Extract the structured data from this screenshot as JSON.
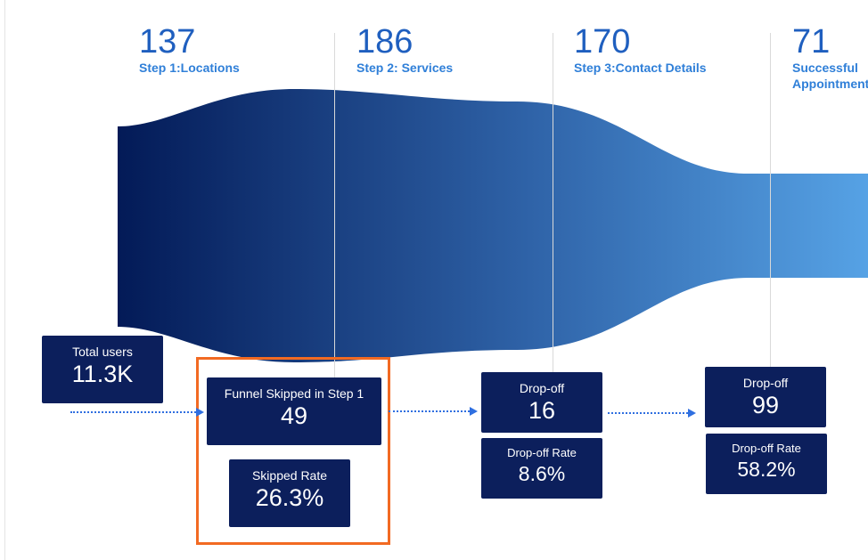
{
  "chart_data": {
    "type": "funnel",
    "stages": [
      {
        "value": "137",
        "label": "Step 1:Locations"
      },
      {
        "value": "186",
        "label": "Step 2: Services"
      },
      {
        "value": "170",
        "label": "Step 3:Contact Details"
      },
      {
        "value": "71",
        "label": "Successful Appointment Booking"
      }
    ],
    "colors": {
      "gradient_start": "#031a57",
      "gradient_mid": "#2f63a8",
      "gradient_end": "#56a2e5",
      "label_value": "#1f5fbf",
      "label_name": "#2f7fd8",
      "box_bg": "#0c1f5c",
      "highlight": "#f26a22",
      "arrow": "#2f6fe0"
    }
  },
  "metrics": {
    "total_users": {
      "label": "Total users",
      "value": "11.3K"
    },
    "funnel_skipped": {
      "label": "Funnel Skipped in Step 1",
      "value": "49"
    },
    "skipped_rate": {
      "label": "Skipped Rate",
      "value": "26.3%"
    },
    "drop_off_step3": {
      "label": "Drop-off",
      "value": "16"
    },
    "drop_off_rate_step3": {
      "label": "Drop-off Rate",
      "value": "8.6%"
    },
    "drop_off_final": {
      "label": "Drop-off",
      "value": "99"
    },
    "drop_off_rate_final": {
      "label": "Drop-off Rate",
      "value": "58.2%"
    }
  }
}
